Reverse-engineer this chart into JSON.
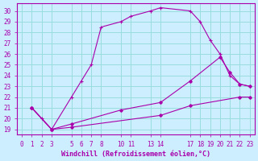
{
  "xlabel": "Windchill (Refroidissement éolien,°C)",
  "bg_color": "#cceeff",
  "grid_color": "#99dddd",
  "line_color": "#aa00aa",
  "ylim": [
    18.5,
    30.7
  ],
  "xlim": [
    -0.5,
    23.5
  ],
  "yticks": [
    19,
    20,
    21,
    22,
    23,
    24,
    25,
    26,
    27,
    28,
    29,
    30
  ],
  "xtick_positions": [
    0,
    1,
    2,
    3,
    5,
    6,
    7,
    8,
    10,
    11,
    13,
    14,
    17,
    18,
    19,
    20,
    21,
    22,
    23
  ],
  "xtick_labels": [
    "0",
    "1",
    "2",
    "3",
    "5",
    "6",
    "7",
    "8",
    "10",
    "11",
    "13",
    "14",
    "17",
    "18",
    "19",
    "20",
    "21",
    "22",
    "23"
  ],
  "line1_x": [
    1,
    2,
    3,
    5,
    6,
    7,
    8,
    10,
    11,
    13,
    14,
    17,
    18,
    19,
    20,
    21,
    22,
    23
  ],
  "line1_y": [
    21,
    20,
    19,
    22,
    23.5,
    25,
    28.5,
    29,
    29.5,
    30,
    30.3,
    30,
    29,
    27.3,
    26,
    24,
    23.2,
    23
  ],
  "line2_x": [
    1,
    3,
    5,
    10,
    14,
    17,
    20,
    21,
    22,
    23
  ],
  "line2_y": [
    21,
    19,
    19.5,
    20.8,
    21.5,
    23.5,
    25.7,
    24.3,
    23.2,
    23
  ],
  "line3_x": [
    1,
    3,
    5,
    14,
    17,
    22,
    23
  ],
  "line3_y": [
    21,
    19,
    19.2,
    20.3,
    21.2,
    22,
    22
  ]
}
